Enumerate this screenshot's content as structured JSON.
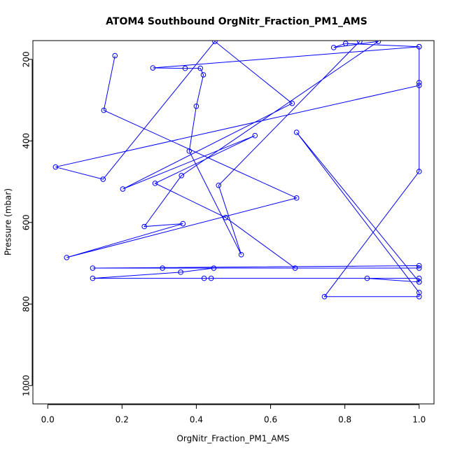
{
  "chart_data": {
    "type": "line",
    "title": "ATOM4 Southbound OrgNitr_Fraction_PM1_AMS",
    "x_label": "OrgNitr_Fraction_PM1_AMS",
    "y_label": "Pressure (mbar)",
    "color": "#0000ff",
    "y_inverted": true,
    "xlim": [
      -0.04,
      1.04
    ],
    "ylim": [
      154,
      1045
    ],
    "xticks": [
      {
        "value": 0,
        "label": "0.0"
      },
      0.2,
      0.4,
      0.6,
      0.8,
      {
        "value": 1,
        "label": "1.0"
      }
    ],
    "yticks": [
      200,
      400,
      600,
      800,
      1000
    ],
    "x": [
      0.181,
      0.151,
      0.67,
      0.051,
      0.364,
      0.26,
      0.36,
      0.89,
      0.77,
      0.802,
      1.0,
      1.0,
      1.0,
      0.021,
      0.149,
      0.45,
      0.658,
      0.202,
      0.558,
      0.289,
      0.479,
      0.666,
      0.121,
      1.0,
      1.0,
      0.309,
      0.447,
      0.358,
      0.121,
      0.421,
      0.44,
      1.0,
      1.0,
      0.86,
      1.0,
      0.67,
      1.0,
      1.0,
      0.745,
      1.0,
      1.0,
      0.283,
      0.37,
      0.411,
      0.419,
      0.4,
      0.381,
      0.521,
      0.46,
      0.84
    ],
    "values": [
      191,
      325,
      540,
      686,
      603,
      610,
      485,
      156,
      171,
      161,
      169,
      257,
      264,
      464,
      494,
      156,
      308,
      518,
      387,
      504,
      588,
      712,
      712,
      706,
      712,
      712,
      712,
      722,
      737,
      737,
      737,
      737,
      746,
      737,
      746,
      379,
      772,
      782,
      782,
      475,
      169,
      221,
      222,
      222,
      238,
      315,
      425,
      679,
      509,
      156
    ]
  }
}
